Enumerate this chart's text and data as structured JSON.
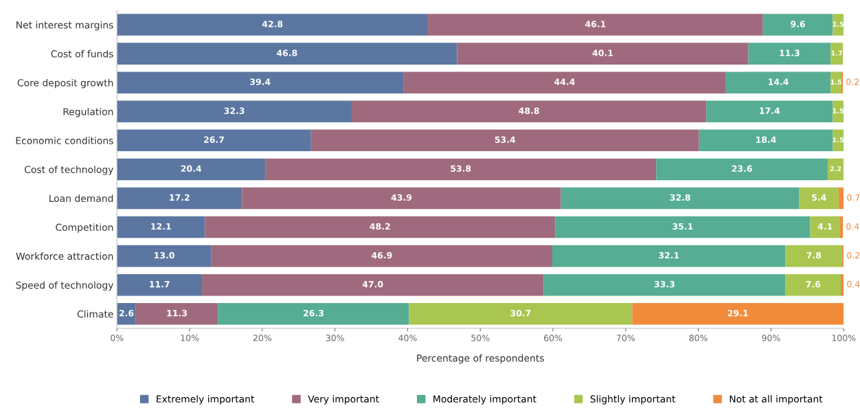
{
  "chart_data": {
    "type": "bar",
    "orientation": "horizontal",
    "stacked": true,
    "xlabel": "Percentage of respondents",
    "categories": [
      "Net interest margins",
      "Cost of funds",
      "Core deposit growth",
      "Regulation",
      "Economic conditions",
      "Cost of technology",
      "Loan demand",
      "Competition",
      "Workforce attraction",
      "Speed of technology",
      "Climate"
    ],
    "series": [
      {
        "name": "Extremely important",
        "color": "#5b76a0",
        "values": [
          42.8,
          46.8,
          39.4,
          32.3,
          26.7,
          20.4,
          17.2,
          12.1,
          13.0,
          11.7,
          2.6
        ],
        "value_labels": [
          "42.8",
          "46.8",
          "39.4",
          "32.3",
          "26.7",
          "20.4",
          "17.2",
          "12.1",
          "13.0",
          "11.7",
          "2.6"
        ]
      },
      {
        "name": "Very important",
        "color": "#a06a7e",
        "values": [
          46.1,
          40.1,
          44.4,
          48.8,
          53.4,
          53.8,
          43.9,
          48.2,
          46.9,
          47.0,
          11.3
        ],
        "value_labels": [
          "46.1",
          "40.1",
          "44.4",
          "48.8",
          "53.4",
          "53.8",
          "43.9",
          "48.2",
          "46.9",
          "47.0",
          "11.3"
        ]
      },
      {
        "name": "Moderately important",
        "color": "#56ad93",
        "values": [
          9.6,
          11.3,
          14.4,
          17.4,
          18.4,
          23.6,
          32.8,
          35.1,
          32.1,
          33.3,
          26.3
        ],
        "value_labels": [
          "9.6",
          "11.3",
          "14.4",
          "17.4",
          "18.4",
          "23.6",
          "32.8",
          "35.1",
          "32.1",
          "33.3",
          "26.3"
        ]
      },
      {
        "name": "Slightly important",
        "color": "#a9c650",
        "values": [
          1.5,
          1.7,
          1.5,
          1.5,
          1.5,
          2.2,
          5.4,
          4.1,
          7.8,
          7.6,
          30.7
        ],
        "value_labels": [
          "1.5",
          "1.7",
          "1.5",
          "1.5",
          "1.5",
          "2.2",
          "5.4",
          "4.1",
          "7.8",
          "7.6",
          "30.7"
        ]
      },
      {
        "name": "Not at all important",
        "color": "#f08b3c",
        "values": [
          null,
          null,
          0.2,
          null,
          null,
          null,
          0.7,
          0.4,
          0.2,
          0.4,
          29.1
        ],
        "value_labels": [
          null,
          null,
          "0.2",
          null,
          null,
          null,
          "0.7",
          "0.4",
          "0.2",
          "0.4",
          "29.1"
        ]
      }
    ],
    "xlim": [
      0,
      100
    ],
    "xticks": [
      {
        "value": 0,
        "label": "0%"
      },
      {
        "value": 10,
        "label": "10%"
      },
      {
        "value": 20,
        "label": "20%"
      },
      {
        "value": 30,
        "label": "30%"
      },
      {
        "value": 40,
        "label": "40%"
      },
      {
        "value": 50,
        "label": "50%"
      },
      {
        "value": 60,
        "label": "60%"
      },
      {
        "value": 70,
        "label": "70%"
      },
      {
        "value": 80,
        "label": "80%"
      },
      {
        "value": 90,
        "label": "90%"
      },
      {
        "value": 100,
        "label": "100%"
      }
    ],
    "legend": "bottom",
    "grid": false
  }
}
